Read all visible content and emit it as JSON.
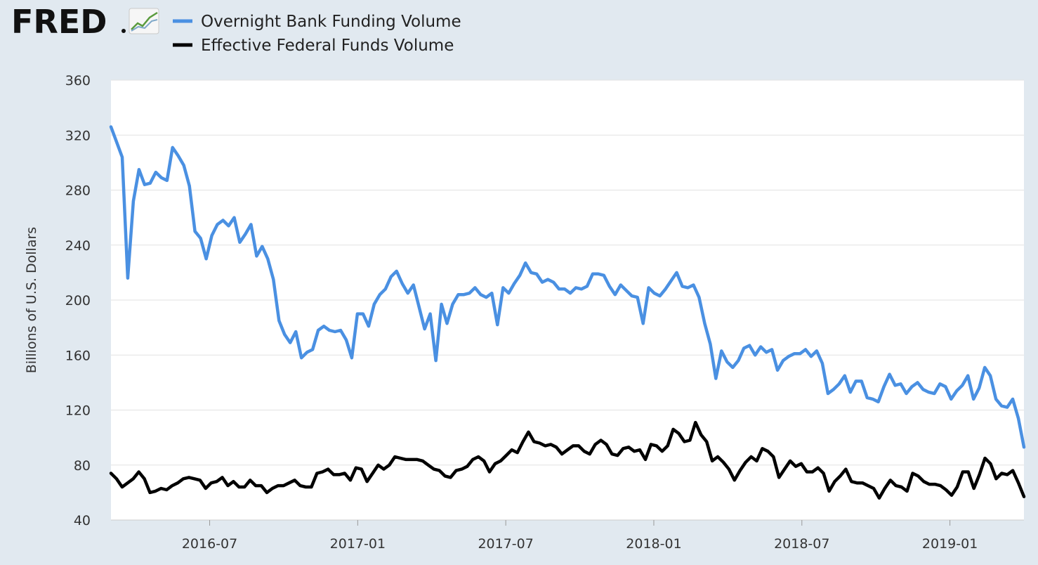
{
  "logo": {
    "text": "FRED"
  },
  "colors": {
    "background": "#e1e9f0",
    "plot_background": "#ffffff",
    "gridline": "#e2e2e2",
    "series_1": "#4a90e2",
    "series_2": "#000000"
  },
  "chart_data": {
    "type": "line",
    "title": "",
    "xlabel": "",
    "ylabel": "Billions of U.S. Dollars",
    "ylim": [
      40,
      360
    ],
    "yticks": [
      "40",
      "80",
      "120",
      "160",
      "200",
      "240",
      "280",
      "320",
      "360"
    ],
    "xticks": [
      "2016-07",
      "2017-01",
      "2017-07",
      "2018-01",
      "2018-07",
      "2019-01"
    ],
    "xrange": [
      "2016-03",
      "2019-04"
    ],
    "grid": true,
    "legend_position": "top-left",
    "frequency": "weekly",
    "series": [
      {
        "name": "Overnight Bank Funding Volume",
        "color": "#4a90e2",
        "values": [
          326,
          315,
          304,
          216,
          272,
          295,
          284,
          285,
          293,
          289,
          287,
          311,
          305,
          298,
          283,
          250,
          245,
          230,
          247,
          255,
          258,
          254,
          260,
          242,
          248,
          255,
          232,
          239,
          230,
          215,
          185,
          175,
          169,
          177,
          158,
          162,
          164,
          178,
          181,
          178,
          177,
          178,
          171,
          158,
          190,
          190,
          181,
          197,
          204,
          208,
          217,
          221,
          212,
          205,
          211,
          195,
          179,
          190,
          156,
          197,
          183,
          197,
          204,
          204,
          205,
          209,
          204,
          202,
          205,
          182,
          209,
          205,
          212,
          218,
          227,
          220,
          219,
          213,
          215,
          213,
          208,
          208,
          205,
          209,
          208,
          210,
          219,
          219,
          218,
          210,
          204,
          211,
          207,
          203,
          202,
          183,
          209,
          205,
          203,
          208,
          214,
          220,
          210,
          209,
          211,
          202,
          183,
          168,
          143,
          163,
          155,
          151,
          156,
          165,
          167,
          160,
          166,
          162,
          164,
          149,
          156,
          159,
          161,
          161,
          164,
          159,
          163,
          154,
          132,
          135,
          139,
          145,
          133,
          141,
          141,
          129,
          128,
          126,
          137,
          146,
          138,
          139,
          132,
          137,
          140,
          135,
          133,
          132,
          139,
          137,
          128,
          134,
          138,
          145,
          128,
          136,
          151,
          145,
          128,
          123,
          122,
          128,
          114,
          93
        ],
        "values_note": "weekly observations from 2016-03 to 2019-04"
      },
      {
        "name": "Effective Federal Funds Volume",
        "color": "#000000",
        "values": [
          74,
          70,
          64,
          67,
          70,
          75,
          70,
          60,
          61,
          63,
          62,
          65,
          67,
          70,
          71,
          70,
          69,
          63,
          67,
          68,
          71,
          65,
          68,
          64,
          64,
          69,
          65,
          65,
          60,
          63,
          65,
          65,
          67,
          69,
          65,
          64,
          64,
          74,
          75,
          77,
          73,
          73,
          74,
          69,
          78,
          77,
          68,
          74,
          80,
          77,
          80,
          86,
          85,
          84,
          84,
          84,
          83,
          80,
          77,
          76,
          72,
          71,
          76,
          77,
          79,
          84,
          86,
          83,
          75,
          81,
          83,
          87,
          91,
          89,
          97,
          104,
          97,
          96,
          94,
          95,
          93,
          88,
          91,
          94,
          94,
          90,
          88,
          95,
          98,
          95,
          88,
          87,
          92,
          93,
          90,
          91,
          84,
          95,
          94,
          90,
          94,
          106,
          103,
          97,
          98,
          111,
          102,
          97,
          83,
          86,
          82,
          77,
          69,
          76,
          82,
          86,
          83,
          92,
          90,
          86,
          71,
          77,
          83,
          79,
          81,
          75,
          75,
          78,
          74,
          61,
          68,
          72,
          77,
          68,
          67,
          67,
          65,
          63,
          56,
          63,
          69,
          65,
          64,
          61,
          74,
          72,
          68,
          66,
          66,
          65,
          62,
          58,
          64,
          75,
          75,
          63,
          73,
          85,
          81,
          70,
          74,
          73,
          76,
          67,
          57
        ]
      }
    ]
  }
}
